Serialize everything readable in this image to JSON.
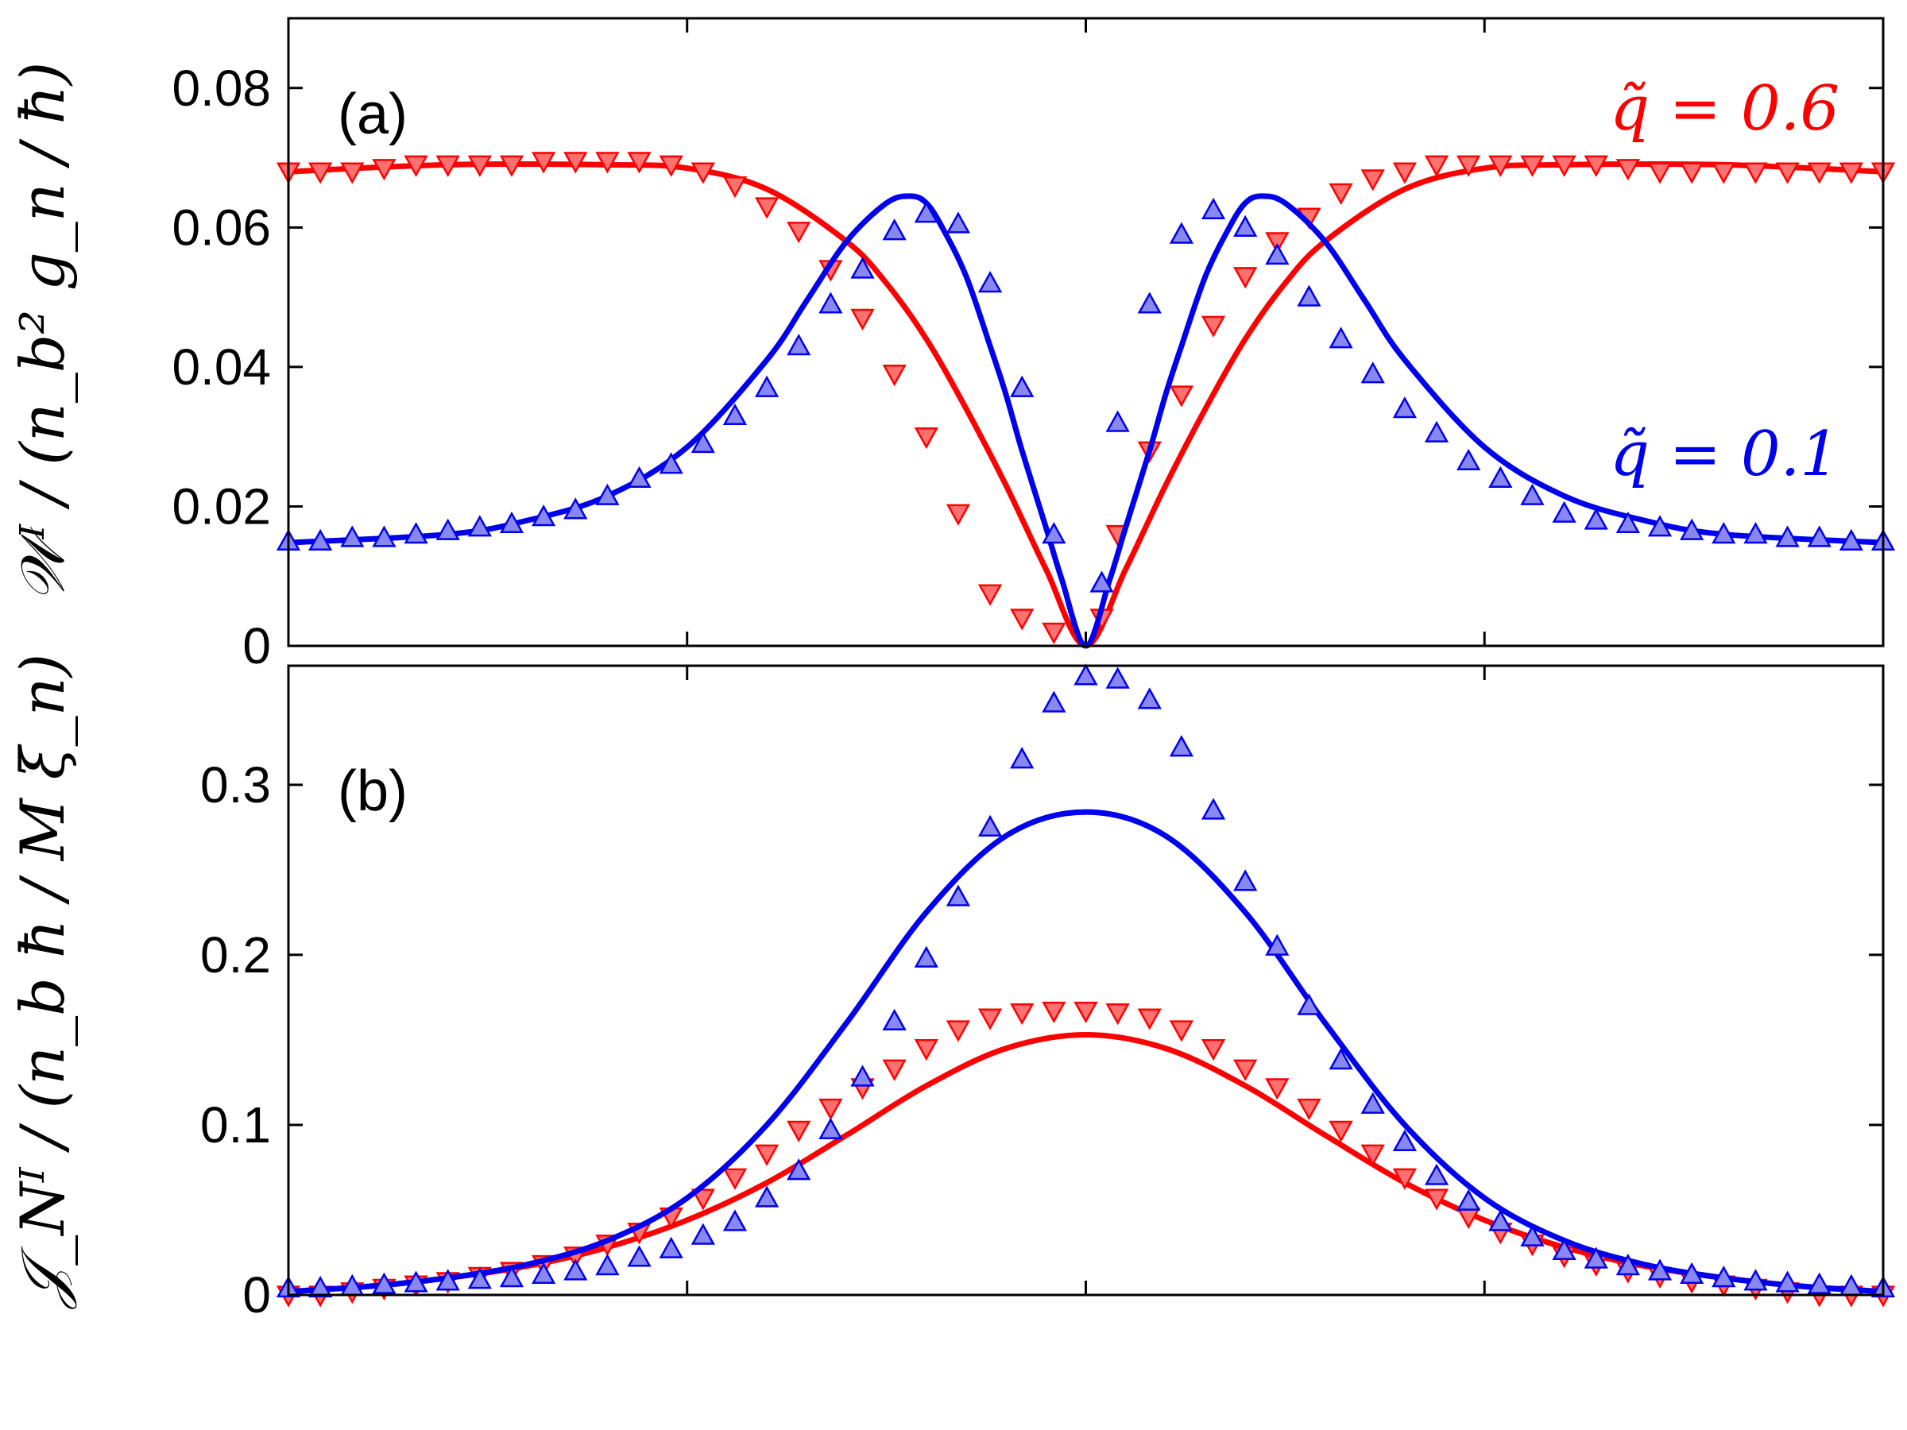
{
  "chart_data": [
    {
      "type": "line",
      "panel": "a",
      "panel_label": "(a)",
      "ylabel": "𝒲ᴵ / (n_b² g_n / ħ)",
      "yticks": [
        "0",
        "0.02",
        "0.04",
        "0.06",
        "0.08"
      ],
      "ylim": [
        0,
        0.09
      ],
      "xlim": [
        -1,
        1
      ],
      "x_tick_positions": [
        -0.5,
        0,
        0.5
      ],
      "grid": false,
      "series": [
        {
          "name": "q̃=0.6",
          "color": "#ff0000",
          "marker": "triangle-down",
          "curve": {
            "x": [
              -1,
              -0.8,
              -0.6,
              -0.5,
              -0.4,
              -0.3,
              -0.25,
              -0.2,
              -0.15,
              -0.1,
              -0.05,
              0,
              0.05,
              0.1,
              0.15,
              0.2,
              0.25,
              0.3,
              0.4,
              0.5,
              0.6,
              0.8,
              1
            ],
            "y": [
              0.068,
              0.069,
              0.069,
              0.0685,
              0.0655,
              0.058,
              0.052,
              0.044,
              0.034,
              0.023,
              0.011,
              0,
              0.011,
              0.023,
              0.034,
              0.044,
              0.052,
              0.058,
              0.0655,
              0.0685,
              0.069,
              0.069,
              0.068
            ]
          },
          "points": {
            "x": [
              -1,
              -0.96,
              -0.92,
              -0.88,
              -0.84,
              -0.8,
              -0.76,
              -0.72,
              -0.68,
              -0.64,
              -0.6,
              -0.56,
              -0.52,
              -0.48,
              -0.44,
              -0.4,
              -0.36,
              -0.32,
              -0.28,
              -0.24,
              -0.2,
              -0.16,
              -0.12,
              -0.08,
              -0.04,
              0.02,
              0.04,
              0.08,
              0.12,
              0.16,
              0.2,
              0.24,
              0.28,
              0.32,
              0.36,
              0.4,
              0.44,
              0.48,
              0.52,
              0.56,
              0.6,
              0.64,
              0.68,
              0.72,
              0.76,
              0.8,
              0.84,
              0.88,
              0.92,
              0.96,
              1
            ],
            "y": [
              0.068,
              0.068,
              0.068,
              0.0685,
              0.069,
              0.069,
              0.069,
              0.069,
              0.0695,
              0.0695,
              0.0695,
              0.0695,
              0.069,
              0.068,
              0.066,
              0.063,
              0.0595,
              0.054,
              0.047,
              0.039,
              0.03,
              0.019,
              0.0075,
              0.004,
              0.002,
              0.004,
              0.016,
              0.028,
              0.036,
              0.046,
              0.053,
              0.058,
              0.0615,
              0.065,
              0.067,
              0.068,
              0.069,
              0.069,
              0.069,
              0.069,
              0.069,
              0.069,
              0.0685,
              0.068,
              0.068,
              0.068,
              0.068,
              0.068,
              0.068,
              0.068,
              0.068
            ]
          },
          "label": "q̃ = 0.6"
        },
        {
          "name": "q̃=0.1",
          "color": "#0000ee",
          "marker": "triangle-up",
          "curve": {
            "x": [
              -1,
              -0.8,
              -0.7,
              -0.6,
              -0.5,
              -0.4,
              -0.35,
              -0.3,
              -0.25,
              -0.22,
              -0.2,
              -0.18,
              -0.15,
              -0.12,
              -0.1,
              -0.08,
              -0.05,
              -0.03,
              0,
              0.03,
              0.05,
              0.08,
              0.1,
              0.12,
              0.15,
              0.18,
              0.2,
              0.22,
              0.25,
              0.3,
              0.35,
              0.4,
              0.5,
              0.6,
              0.7,
              0.8,
              1
            ],
            "y": [
              0.0148,
              0.016,
              0.018,
              0.0215,
              0.0285,
              0.041,
              0.0495,
              0.058,
              0.0635,
              0.0645,
              0.0635,
              0.06,
              0.053,
              0.043,
              0.036,
              0.028,
              0.017,
              0.0095,
              0,
              0.0095,
              0.017,
              0.028,
              0.036,
              0.043,
              0.053,
              0.06,
              0.0635,
              0.0645,
              0.0635,
              0.058,
              0.0495,
              0.041,
              0.0285,
              0.0215,
              0.018,
              0.016,
              0.0148
            ]
          },
          "points": {
            "x": [
              -1,
              -0.96,
              -0.92,
              -0.88,
              -0.84,
              -0.8,
              -0.76,
              -0.72,
              -0.68,
              -0.64,
              -0.6,
              -0.56,
              -0.52,
              -0.48,
              -0.44,
              -0.4,
              -0.36,
              -0.32,
              -0.28,
              -0.24,
              -0.2,
              -0.16,
              -0.12,
              -0.08,
              -0.04,
              0.02,
              0.04,
              0.08,
              0.12,
              0.16,
              0.2,
              0.24,
              0.28,
              0.32,
              0.36,
              0.4,
              0.44,
              0.48,
              0.52,
              0.56,
              0.6,
              0.64,
              0.68,
              0.72,
              0.76,
              0.8,
              0.84,
              0.88,
              0.92,
              0.96,
              1
            ],
            "y": [
              0.015,
              0.015,
              0.0155,
              0.0155,
              0.016,
              0.0165,
              0.017,
              0.0175,
              0.0185,
              0.0195,
              0.0215,
              0.024,
              0.026,
              0.029,
              0.033,
              0.037,
              0.043,
              0.049,
              0.054,
              0.0595,
              0.062,
              0.0605,
              0.052,
              0.037,
              0.016,
              0.009,
              0.032,
              0.049,
              0.059,
              0.0625,
              0.06,
              0.056,
              0.05,
              0.044,
              0.039,
              0.034,
              0.0305,
              0.0265,
              0.024,
              0.0215,
              0.019,
              0.018,
              0.0175,
              0.017,
              0.0165,
              0.016,
              0.016,
              0.0155,
              0.0155,
              0.015,
              0.015
            ]
          },
          "label": "q̃ = 0.1"
        }
      ]
    },
    {
      "type": "line",
      "panel": "b",
      "panel_label": "(b)",
      "ylabel": "𝒥_Nᴵ / (n_b ħ / M ξ_n)",
      "yticks": [
        "0",
        "0.1",
        "0.2",
        "0.3"
      ],
      "ylim": [
        0,
        0.37
      ],
      "xlim": [
        -1,
        1
      ],
      "x_tick_positions": [
        -0.5,
        0,
        0.5
      ],
      "grid": false,
      "series": [
        {
          "name": "q̃=0.6",
          "color": "#ff0000",
          "marker": "triangle-down",
          "curve": {
            "x": [
              -1,
              -0.9,
              -0.8,
              -0.7,
              -0.6,
              -0.5,
              -0.4,
              -0.3,
              -0.2,
              -0.1,
              0,
              0.1,
              0.2,
              0.3,
              0.4,
              0.5,
              0.6,
              0.7,
              0.8,
              0.9,
              1
            ],
            "y": [
              0.002,
              0.005,
              0.01,
              0.017,
              0.028,
              0.044,
              0.066,
              0.094,
              0.123,
              0.145,
              0.153,
              0.145,
              0.123,
              0.094,
              0.066,
              0.044,
              0.028,
              0.017,
              0.01,
              0.005,
              0.002
            ]
          },
          "points": {
            "x": [
              -1,
              -0.96,
              -0.92,
              -0.88,
              -0.84,
              -0.8,
              -0.76,
              -0.72,
              -0.68,
              -0.64,
              -0.6,
              -0.56,
              -0.52,
              -0.48,
              -0.44,
              -0.4,
              -0.36,
              -0.32,
              -0.28,
              -0.24,
              -0.2,
              -0.16,
              -0.12,
              -0.08,
              -0.04,
              0,
              0.04,
              0.08,
              0.12,
              0.16,
              0.2,
              0.24,
              0.28,
              0.32,
              0.36,
              0.4,
              0.44,
              0.48,
              0.52,
              0.56,
              0.6,
              0.64,
              0.68,
              0.72,
              0.76,
              0.8,
              0.84,
              0.88,
              0.92,
              0.96,
              1
            ],
            "y": [
              0,
              0,
              0.002,
              0.004,
              0.006,
              0.008,
              0.011,
              0.014,
              0.018,
              0.023,
              0.03,
              0.037,
              0.046,
              0.057,
              0.069,
              0.083,
              0.097,
              0.11,
              0.122,
              0.133,
              0.145,
              0.156,
              0.163,
              0.166,
              0.167,
              0.167,
              0.166,
              0.163,
              0.156,
              0.145,
              0.133,
              0.122,
              0.11,
              0.097,
              0.083,
              0.069,
              0.057,
              0.046,
              0.037,
              0.03,
              0.023,
              0.018,
              0.014,
              0.011,
              0.008,
              0.006,
              0.004,
              0.002,
              0,
              0,
              0
            ]
          }
        },
        {
          "name": "q̃=0.1",
          "color": "#0000ee",
          "marker": "triangle-up",
          "curve": {
            "x": [
              -1,
              -0.9,
              -0.8,
              -0.7,
              -0.6,
              -0.5,
              -0.4,
              -0.3,
              -0.2,
              -0.1,
              0,
              0.1,
              0.2,
              0.3,
              0.4,
              0.5,
              0.6,
              0.7,
              0.8,
              0.9,
              1
            ],
            "y": [
              0.002,
              0.005,
              0.01,
              0.018,
              0.032,
              0.057,
              0.1,
              0.16,
              0.225,
              0.27,
              0.284,
              0.27,
              0.225,
              0.16,
              0.1,
              0.057,
              0.032,
              0.018,
              0.01,
              0.005,
              0.002
            ]
          },
          "points": {
            "x": [
              -1,
              -0.96,
              -0.92,
              -0.88,
              -0.84,
              -0.8,
              -0.76,
              -0.72,
              -0.68,
              -0.64,
              -0.6,
              -0.56,
              -0.52,
              -0.48,
              -0.44,
              -0.4,
              -0.36,
              -0.32,
              -0.28,
              -0.24,
              -0.2,
              -0.16,
              -0.12,
              -0.08,
              -0.04,
              0,
              0.04,
              0.08,
              0.12,
              0.16,
              0.2,
              0.24,
              0.28,
              0.32,
              0.36,
              0.4,
              0.44,
              0.48,
              0.52,
              0.56,
              0.6,
              0.64,
              0.68,
              0.72,
              0.76,
              0.8,
              0.84,
              0.88,
              0.92,
              0.96,
              1
            ],
            "y": [
              0.004,
              0.004,
              0.005,
              0.006,
              0.007,
              0.008,
              0.009,
              0.01,
              0.012,
              0.014,
              0.017,
              0.022,
              0.027,
              0.035,
              0.043,
              0.057,
              0.073,
              0.097,
              0.128,
              0.161,
              0.198,
              0.234,
              0.275,
              0.315,
              0.348,
              0.364,
              0.362,
              0.35,
              0.322,
              0.285,
              0.243,
              0.205,
              0.17,
              0.138,
              0.112,
              0.09,
              0.07,
              0.055,
              0.043,
              0.034,
              0.026,
              0.021,
              0.017,
              0.014,
              0.012,
              0.01,
              0.008,
              0.007,
              0.006,
              0.005,
              0.004
            ]
          }
        }
      ]
    }
  ]
}
